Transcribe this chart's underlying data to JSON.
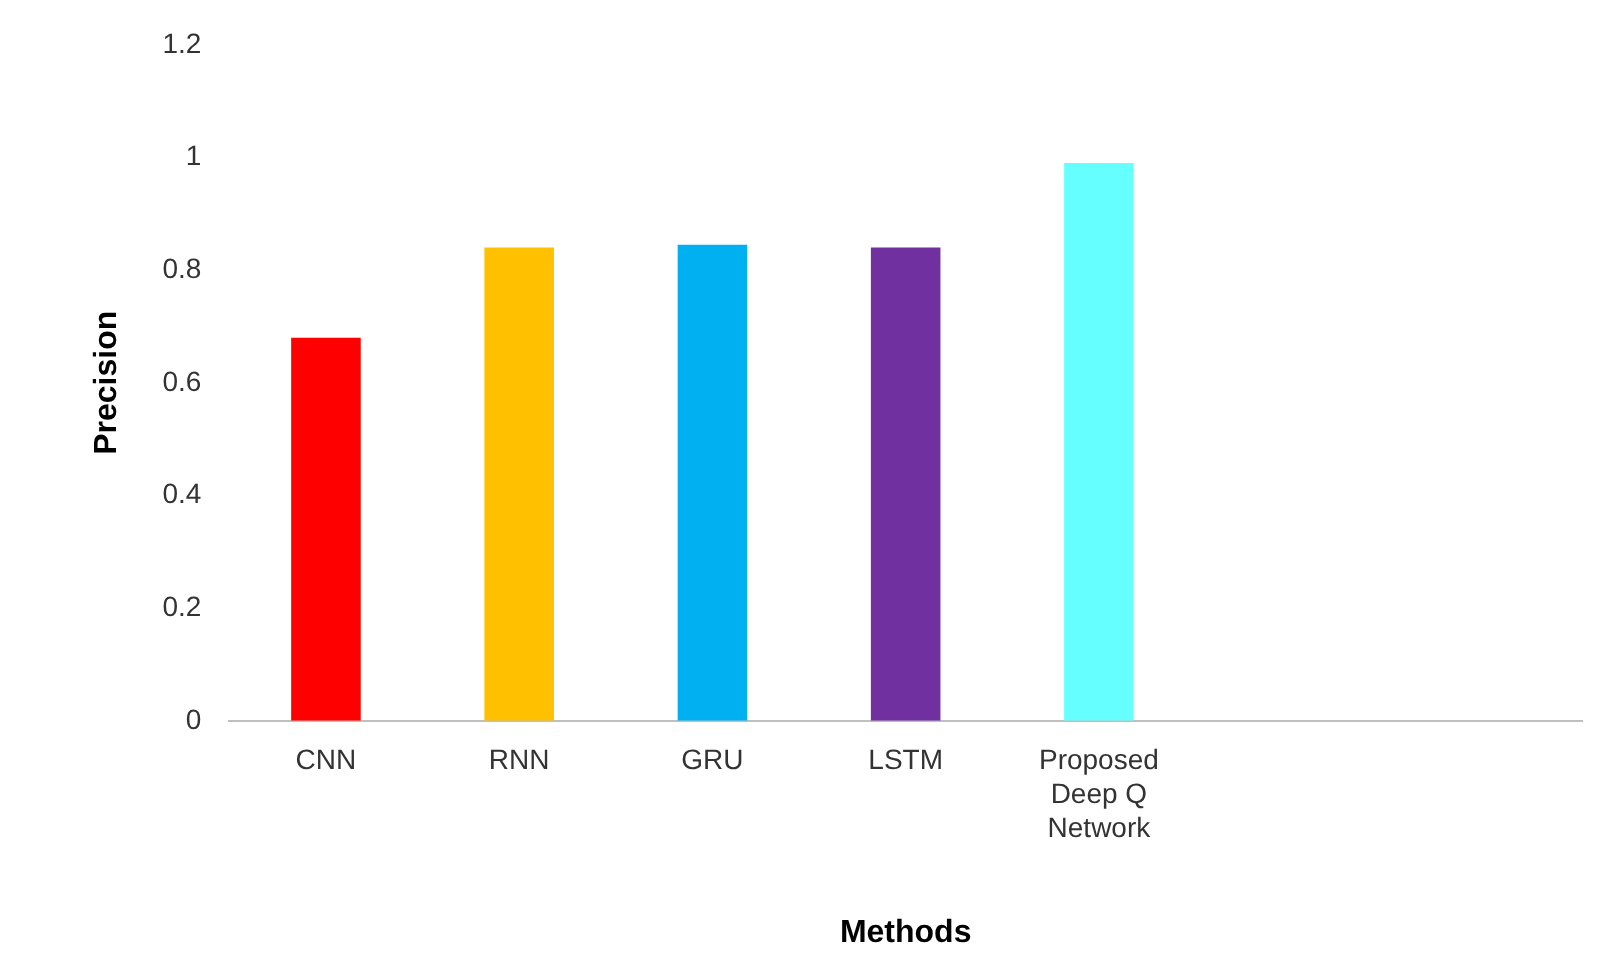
{
  "chart_data": {
    "type": "bar",
    "xlabel": "Methods",
    "ylabel": "Precision",
    "categories": [
      "CNN",
      "RNN",
      "GRU",
      "LSTM",
      "Proposed Deep Q Network",
      null,
      null
    ],
    "values": [
      0.68,
      0.84,
      0.845,
      0.84,
      0.99,
      null,
      null
    ],
    "colors": [
      "#ff0000",
      "#ffc000",
      "#00b0f0",
      "#7030a0",
      "#66ffff",
      null,
      null
    ],
    "ylim": [
      0,
      1.2
    ],
    "yticks": [
      0,
      0.2,
      0.4,
      0.6,
      0.8,
      1,
      1.2
    ],
    "grid": false,
    "legend": false
  }
}
